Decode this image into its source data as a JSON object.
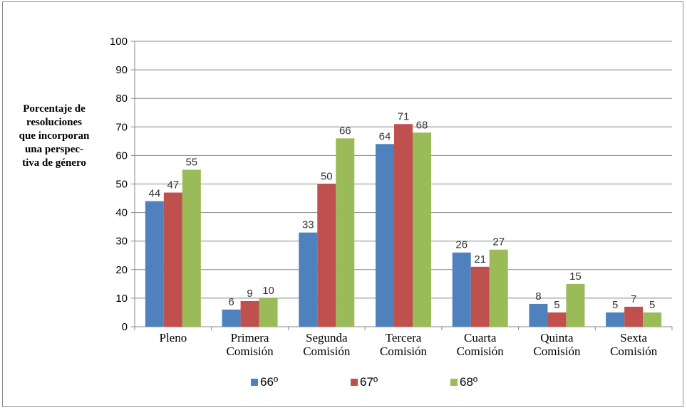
{
  "chart_data": {
    "type": "bar",
    "ylabel": "Porcentaje de resoluciones que incorporan una perspec-tiva de género",
    "ylabel_lines": [
      "Porcentaje de",
      "resoluciones",
      "que incorporan",
      "una perspec-",
      "tiva de género"
    ],
    "ylim": [
      0,
      100
    ],
    "yticks": [
      0,
      10,
      20,
      30,
      40,
      50,
      60,
      70,
      80,
      90,
      100
    ],
    "grid": true,
    "legend_position": "bottom",
    "categories": [
      [
        "Pleno"
      ],
      [
        "Primera",
        "Comisión"
      ],
      [
        "Segunda",
        "Comisión"
      ],
      [
        "Tercera",
        "Comisión"
      ],
      [
        "Cuarta",
        "Comisión"
      ],
      [
        "Quinta",
        "Comisión"
      ],
      [
        "Sexta",
        "Comisión"
      ]
    ],
    "series": [
      {
        "name": "66º",
        "color": "#4f81bd",
        "values": [
          44,
          6,
          33,
          64,
          26,
          8,
          5
        ]
      },
      {
        "name": "67º",
        "color": "#c0504d",
        "values": [
          47,
          9,
          50,
          71,
          21,
          5,
          7
        ]
      },
      {
        "name": "68º",
        "color": "#9bbb59",
        "values": [
          55,
          10,
          66,
          68,
          27,
          15,
          5
        ]
      }
    ]
  }
}
